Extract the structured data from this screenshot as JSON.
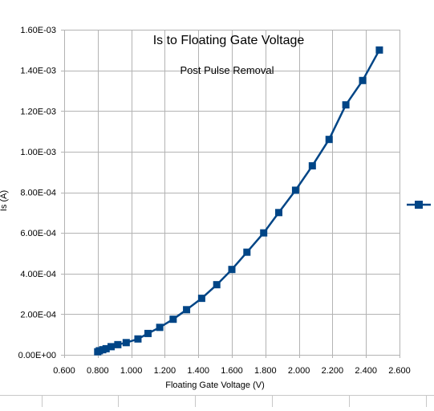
{
  "chart_data": {
    "type": "line",
    "title": "Is to Floating Gate Voltage",
    "subtitle": "Post Pulse Removal",
    "xlabel": "Floating Gate Voltage (V)",
    "ylabel": "Is (A)",
    "xlim": [
      0.6,
      2.6
    ],
    "ylim": [
      0,
      0.0016
    ],
    "x_ticks": [
      "0.600",
      "0.800",
      "1.000",
      "1.200",
      "1.400",
      "1.600",
      "1.800",
      "2.000",
      "2.200",
      "2.400",
      "2.600"
    ],
    "y_ticks": [
      "0.00E+00",
      "2.00E-04",
      "4.00E-04",
      "6.00E-04",
      "8.00E-04",
      "1.00E-03",
      "1.20E-03",
      "1.40E-03",
      "1.60E-03"
    ],
    "grid": true,
    "legend_position": "right",
    "series": [
      {
        "color": "#004586",
        "marker": "square",
        "x": [
          0.8,
          0.81,
          0.83,
          0.85,
          0.88,
          0.92,
          0.97,
          1.04,
          1.1,
          1.17,
          1.25,
          1.33,
          1.42,
          1.51,
          1.6,
          1.69,
          1.79,
          1.88,
          1.98,
          2.08,
          2.18,
          2.28,
          2.38,
          2.48
        ],
        "y": [
          1.5e-05,
          2e-05,
          2.5e-05,
          3e-05,
          4e-05,
          5e-05,
          6e-05,
          7.8e-05,
          0.000105,
          0.000135,
          0.000175,
          0.000222,
          0.000278,
          0.000345,
          0.00042,
          0.000505,
          0.0006,
          0.0007,
          0.00081,
          0.00093,
          0.00106,
          0.00123,
          0.00135,
          0.0015
        ]
      }
    ]
  }
}
